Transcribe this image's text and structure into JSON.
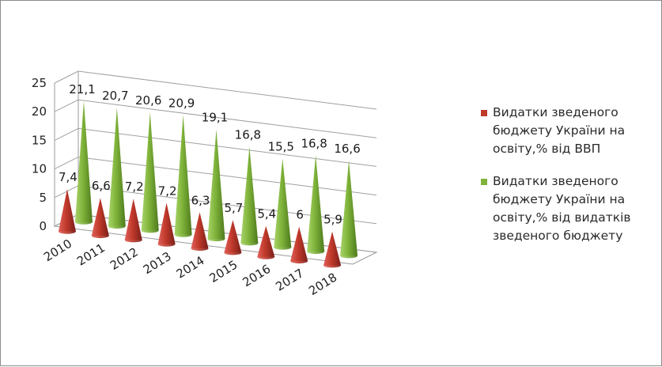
{
  "chart_data": {
    "type": "bar",
    "style": "3d-cone",
    "categories": [
      "2010",
      "2011",
      "2012",
      "2013",
      "2014",
      "2015",
      "2016",
      "2017",
      "2018"
    ],
    "series": [
      {
        "name": "Видатки зведеного бюджету України на освіту,% від ВВП",
        "values": [
          7.4,
          6.6,
          7.2,
          7.2,
          6.3,
          5.7,
          5.4,
          6,
          5.9
        ],
        "labels": [
          "7,4",
          "6,6",
          "7,2",
          "7,2",
          "6,3",
          "5,7",
          "5,4",
          "6",
          "5,9"
        ],
        "color": "#c0392b"
      },
      {
        "name": "Видатки зведеного бюджету України на освіту,% від видатків зведеного бюджету",
        "values": [
          21.1,
          20.7,
          20.6,
          20.9,
          19.1,
          16.8,
          15.5,
          16.8,
          16.6
        ],
        "labels": [
          "21,1",
          "20,7",
          "20,6",
          "20,9",
          "19,1",
          "16,8",
          "15,5",
          "16,8",
          "16,6"
        ],
        "color": "#7fb33a"
      }
    ],
    "y_ticks": [
      "0",
      "5",
      "10",
      "15",
      "20",
      "25"
    ],
    "ylim": [
      0,
      25
    ],
    "grid": true,
    "legend_position": "right"
  },
  "legend": {
    "items": [
      {
        "label": "Видатки зведеного бюджету України на освіту,% від ВВП",
        "color": "#c0392b"
      },
      {
        "label": "Видатки зведеного бюджету України на освіту,% від видатків зведеного бюджету",
        "color": "#7fb33a"
      }
    ]
  }
}
